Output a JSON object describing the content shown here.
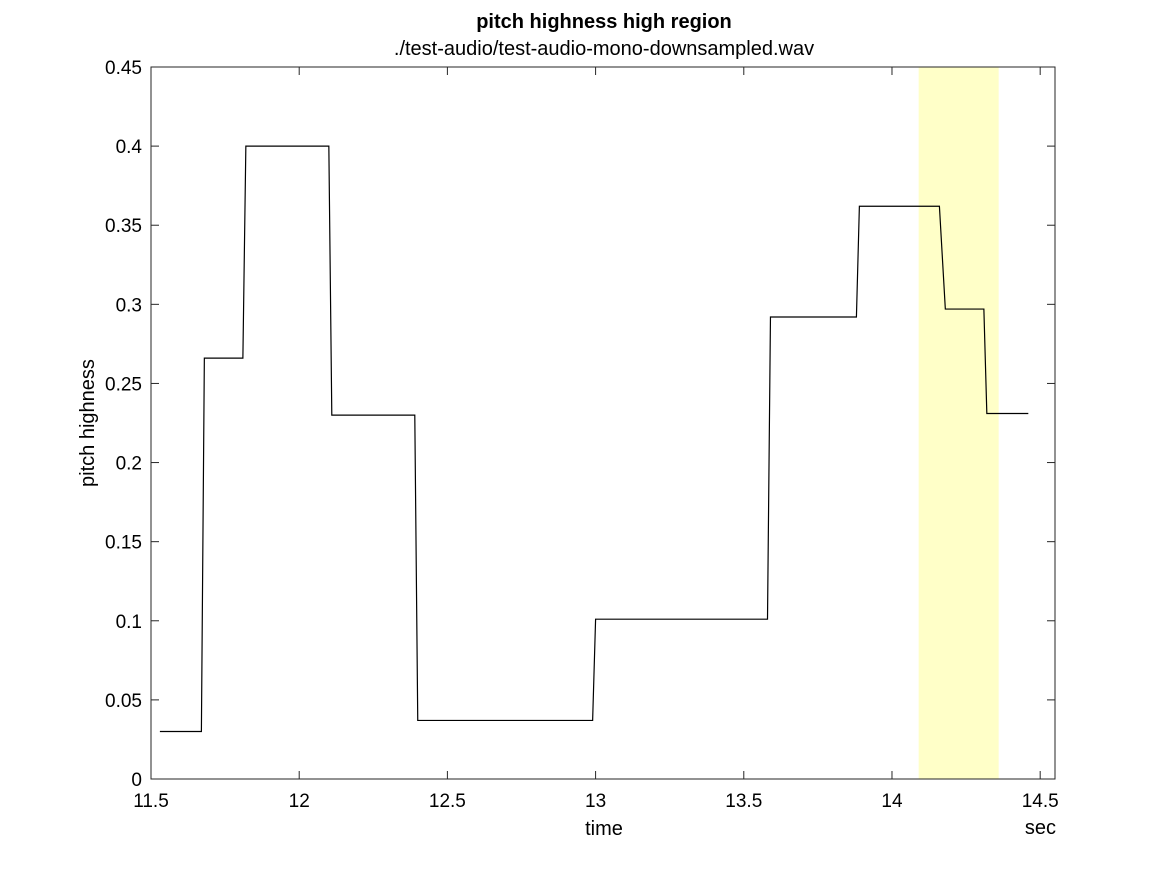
{
  "chart_data": {
    "type": "line",
    "line_style": "step",
    "title": "pitch highness high region",
    "subtitle": "./test-audio/test-audio-mono-downsampled.wav",
    "xlabel": "time",
    "xunit": "sec",
    "ylabel": "pitch highness",
    "xlim": [
      11.5,
      14.55
    ],
    "ylim": [
      0,
      0.45
    ],
    "xticks": [
      11.5,
      12,
      12.5,
      13,
      13.5,
      14,
      14.5
    ],
    "xtick_labels": [
      "11.5",
      "12",
      "12.5",
      "13",
      "13.5",
      "14",
      "14.5"
    ],
    "yticks": [
      0,
      0.05,
      0.1,
      0.15,
      0.2,
      0.25,
      0.3,
      0.35,
      0.4,
      0.45
    ],
    "ytick_labels": [
      "0",
      "0.05",
      "0.1",
      "0.15",
      "0.2",
      "0.25",
      "0.3",
      "0.35",
      "0.4",
      "0.45"
    ],
    "grid": false,
    "highlight_region": {
      "x": [
        14.09,
        14.36
      ],
      "color": "#ffffc8"
    },
    "series": [
      {
        "color": "#000000",
        "x": [
          11.53,
          11.67,
          11.68,
          11.81,
          11.82,
          12.1,
          12.11,
          12.39,
          12.4,
          12.99,
          13.0,
          13.58,
          13.59,
          13.88,
          13.89,
          14.16,
          14.18,
          14.31,
          14.32,
          14.46
        ],
        "y": [
          0.03,
          0.03,
          0.266,
          0.266,
          0.4,
          0.4,
          0.23,
          0.23,
          0.037,
          0.037,
          0.101,
          0.101,
          0.292,
          0.292,
          0.362,
          0.362,
          0.297,
          0.297,
          0.231,
          0.231
        ]
      }
    ]
  }
}
